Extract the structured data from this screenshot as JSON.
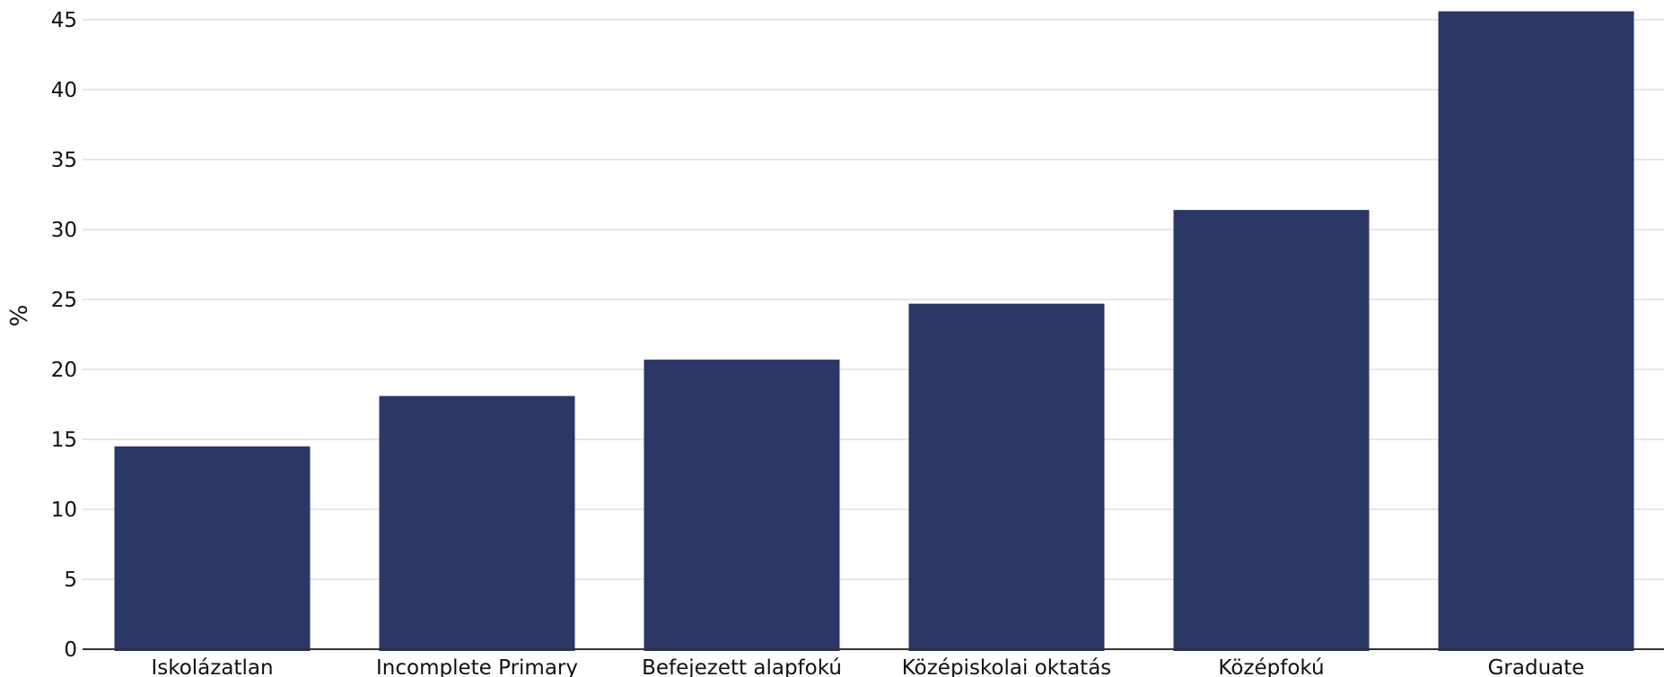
{
  "chart_data": {
    "type": "bar",
    "title": "",
    "xlabel": "",
    "ylabel": "%",
    "categories": [
      "Iskolázatlan",
      "Incomplete Primary",
      "Befejezett alapfokú",
      "Középiskolai oktatás",
      "Középfokú",
      "Graduate"
    ],
    "values": [
      14.5,
      18.1,
      20.7,
      24.7,
      31.4,
      45.6
    ],
    "ylim": [
      0,
      45
    ],
    "yticks": [
      0,
      5,
      10,
      15,
      20,
      25,
      30,
      35,
      40,
      45
    ],
    "grid": true,
    "legend": "none",
    "bar_color": "#2b3765"
  }
}
